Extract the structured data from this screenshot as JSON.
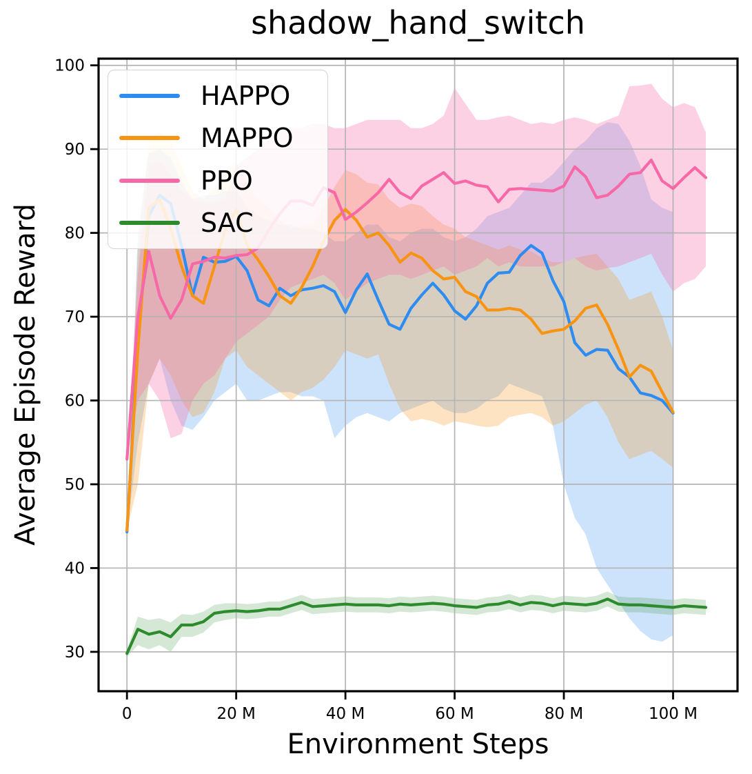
{
  "chart_data": {
    "type": "line",
    "title": "shadow_hand_switch",
    "xlabel": "Environment Steps",
    "ylabel": "Average Episode Reward",
    "xlim": [
      -5.2,
      111.8
    ],
    "ylim": [
      25.3,
      100.8
    ],
    "grid": true,
    "grid_color": "#b3b3b3",
    "legend_position": "upper left",
    "xticks": [
      0,
      20,
      40,
      60,
      80,
      100
    ],
    "xtick_labels": [
      "0",
      "20 M",
      "40 M",
      "60 M",
      "80 M",
      "100 M"
    ],
    "yticks": [
      30,
      40,
      50,
      60,
      70,
      80,
      90,
      100
    ],
    "ytick_labels": [
      "30",
      "40",
      "50",
      "60",
      "70",
      "80",
      "90",
      "100"
    ],
    "x_unit": "millions of environment steps",
    "series": [
      {
        "name": "HAPPO",
        "color": "#2e8cf0",
        "band_opacity": 0.24,
        "x": [
          0,
          2,
          4,
          6,
          8,
          10,
          12,
          14,
          16,
          18,
          20,
          22,
          24,
          26,
          28,
          30,
          32,
          34,
          36,
          38,
          40,
          42,
          44,
          46,
          48,
          50,
          52,
          54,
          56,
          58,
          60,
          62,
          64,
          66,
          68,
          70,
          72,
          74,
          76,
          78,
          80,
          82,
          84,
          86,
          88,
          90,
          92,
          94,
          96,
          98,
          100
        ],
        "y": [
          44.3,
          67,
          82,
          84.5,
          83.5,
          78.5,
          72.5,
          77.1,
          76.5,
          76.6,
          77.2,
          75.5,
          72,
          71.3,
          73.4,
          72.5,
          73.2,
          73.4,
          73.7,
          73,
          70.5,
          73.2,
          75.1,
          72,
          69.1,
          68.5,
          71,
          72.6,
          74,
          72.6,
          70.7,
          69.7,
          71.3,
          74,
          75.2,
          75.3,
          77.3,
          78.5,
          77.6,
          74.3,
          71.8,
          66.9,
          65.4,
          66.1,
          66,
          63.8,
          62.8,
          60.9,
          60.6,
          60,
          58.5
        ],
        "band_lo": [
          44.3,
          55,
          62,
          65,
          60,
          57,
          56.5,
          58,
          60,
          61,
          62,
          60,
          60,
          60.5,
          61,
          61,
          60.5,
          60.5,
          60,
          55.5,
          57,
          58,
          58.5,
          58,
          57.5,
          58.5,
          59,
          59.5,
          60,
          59,
          58.5,
          58.5,
          59,
          60,
          60.5,
          62,
          61.5,
          61,
          60.5,
          57,
          50,
          46,
          44,
          40,
          38,
          36,
          34,
          32.5,
          31.5,
          31.2,
          32
        ],
        "band_hi": [
          44.3,
          80,
          89.5,
          90,
          89,
          86,
          84,
          84.5,
          84.5,
          85,
          85,
          83,
          82,
          81.5,
          81,
          81,
          80.5,
          80.5,
          80,
          79,
          79,
          80,
          81,
          81,
          79.5,
          79,
          80,
          80.5,
          80.5,
          79.5,
          79,
          79.5,
          80.5,
          82,
          82.5,
          83,
          84.5,
          86,
          86,
          87,
          88.5,
          90,
          91,
          92.5,
          93.2,
          93,
          91,
          88,
          84,
          83,
          82.5
        ]
      },
      {
        "name": "MAPPO",
        "color": "#f89413",
        "band_opacity": 0.26,
        "x": [
          0,
          2,
          4,
          6,
          8,
          10,
          12,
          14,
          16,
          18,
          20,
          22,
          24,
          26,
          28,
          30,
          32,
          34,
          36,
          38,
          40,
          42,
          44,
          46,
          48,
          50,
          52,
          54,
          56,
          58,
          60,
          62,
          64,
          66,
          68,
          70,
          72,
          74,
          76,
          78,
          80,
          82,
          84,
          86,
          88,
          90,
          92,
          94,
          96,
          98,
          100
        ],
        "y": [
          44.5,
          66,
          83,
          84,
          80.5,
          76,
          72.5,
          71.6,
          76,
          80.4,
          82.8,
          78.5,
          76.8,
          74.8,
          72.5,
          71.6,
          73.5,
          76,
          79,
          81.5,
          82.8,
          81.5,
          79.5,
          80,
          78.5,
          76.5,
          77.6,
          77,
          75.5,
          74.5,
          74.7,
          73,
          72.4,
          70.8,
          70.8,
          71,
          70.8,
          69.7,
          68,
          68.3,
          68.5,
          69.5,
          71,
          71.4,
          69.1,
          66.1,
          62.8,
          64.2,
          63.5,
          61,
          58.6
        ],
        "band_lo": [
          44.5,
          50,
          62,
          65,
          63,
          60,
          58,
          58.5,
          61,
          65,
          66,
          64,
          63,
          62,
          61,
          60,
          61,
          61.5,
          62.5,
          64,
          66,
          65.5,
          65,
          65.5,
          62,
          59,
          57.5,
          57.8,
          57.5,
          57,
          57.5,
          57.3,
          57,
          56.8,
          57,
          58,
          58.3,
          58.5,
          58,
          57,
          57.5,
          58.5,
          59.5,
          60,
          58,
          55,
          53,
          53.5,
          54,
          53,
          52
        ],
        "band_hi": [
          44.5,
          78,
          91,
          92,
          91,
          88,
          85,
          84,
          85.5,
          87,
          88.5,
          86,
          84,
          83,
          81.5,
          80.5,
          80.8,
          81,
          83,
          85.5,
          87.5,
          87,
          86,
          85.8,
          84,
          83,
          83.5,
          83.2,
          82,
          81,
          80.5,
          79.5,
          79,
          78.5,
          78,
          78.5,
          78,
          77.8,
          77,
          76.5,
          76.5,
          77,
          77.3,
          77.5,
          76,
          74.5,
          72,
          72.5,
          73,
          70,
          66
        ]
      },
      {
        "name": "PPO",
        "color": "#f768a7",
        "band_opacity": 0.3,
        "x": [
          0,
          2,
          4,
          6,
          8,
          10,
          12,
          14,
          16,
          18,
          20,
          22,
          24,
          26,
          28,
          30,
          32,
          34,
          36,
          38,
          40,
          42,
          44,
          46,
          48,
          50,
          52,
          54,
          56,
          58,
          60,
          62,
          64,
          66,
          68,
          70,
          72,
          74,
          76,
          78,
          80,
          82,
          84,
          86,
          88,
          90,
          92,
          94,
          96,
          98,
          100,
          102,
          104,
          106
        ],
        "y": [
          53,
          70,
          77.8,
          72.5,
          69.8,
          72,
          76.3,
          76.6,
          77.1,
          77,
          77.3,
          77.4,
          78.2,
          80.4,
          82.3,
          83.8,
          83.8,
          83.3,
          85.4,
          84.8,
          81.6,
          82.5,
          83.6,
          84.8,
          86.4,
          84.8,
          84.1,
          85.6,
          86.4,
          87.2,
          85.9,
          86.2,
          85.7,
          85.5,
          83.7,
          85.2,
          85.3,
          85.2,
          85.1,
          85,
          85.6,
          87.9,
          86.7,
          84.2,
          84.5,
          85.6,
          87,
          87.2,
          88.7,
          86.2,
          85.3,
          86.6,
          87.8,
          86.6
        ],
        "band_lo": [
          53,
          60,
          62,
          60,
          55.5,
          56,
          60,
          62,
          63,
          65,
          67,
          68,
          69,
          70,
          72,
          73.5,
          74,
          74.5,
          75,
          74,
          72,
          73,
          74,
          74.5,
          75,
          75,
          74.5,
          75,
          75.5,
          76,
          75,
          75.5,
          76,
          77,
          76,
          76.5,
          76,
          76,
          76,
          76,
          76.5,
          77,
          76,
          75.5,
          75.8,
          76,
          76.5,
          77,
          77.5,
          75,
          73,
          74,
          74.5,
          76
        ],
        "band_hi": [
          53,
          75,
          88,
          88.5,
          87,
          85,
          84,
          83.5,
          83.5,
          84,
          88,
          89,
          90,
          91,
          92,
          92.5,
          92.5,
          93,
          93,
          92.5,
          92.5,
          93,
          93.5,
          93.5,
          93.5,
          93.5,
          92.5,
          92.5,
          93,
          94,
          97.3,
          95.4,
          93.5,
          93.5,
          93.8,
          94,
          93.5,
          93,
          93.2,
          93,
          93.5,
          93.8,
          93.5,
          93,
          93.5,
          94,
          97.5,
          97.6,
          97.8,
          96,
          95,
          95.5,
          95,
          92
        ]
      },
      {
        "name": "SAC",
        "color": "#2d8a2d",
        "band_opacity": 0.2,
        "x": [
          0,
          2,
          4,
          6,
          8,
          10,
          12,
          14,
          16,
          18,
          20,
          22,
          24,
          26,
          28,
          30,
          32,
          34,
          36,
          38,
          40,
          42,
          44,
          46,
          48,
          50,
          52,
          54,
          56,
          58,
          60,
          62,
          64,
          66,
          68,
          70,
          72,
          74,
          76,
          78,
          80,
          82,
          84,
          86,
          88,
          90,
          92,
          94,
          96,
          98,
          100,
          102,
          104,
          106
        ],
        "y": [
          29.8,
          32.7,
          32.1,
          32.4,
          31.8,
          33.2,
          33.2,
          33.6,
          34.6,
          34.8,
          34.9,
          34.8,
          34.9,
          35.1,
          35.1,
          35.5,
          35.9,
          35.4,
          35.5,
          35.6,
          35.7,
          35.6,
          35.6,
          35.6,
          35.5,
          35.7,
          35.6,
          35.7,
          35.8,
          35.7,
          35.5,
          35.4,
          35.3,
          35.6,
          35.7,
          36,
          35.6,
          35.9,
          35.8,
          35.5,
          35.8,
          35.7,
          35.6,
          35.8,
          36.3,
          35.7,
          35.6,
          35.6,
          35.5,
          35.4,
          35.3,
          35.5,
          35.4,
          35.3
        ],
        "band_lo": [
          29.4,
          30.8,
          30.3,
          30.8,
          30,
          31.8,
          31.8,
          32.3,
          33.5,
          33.8,
          34,
          33.9,
          34,
          34.2,
          34.2,
          34.6,
          35,
          34.5,
          34.6,
          34.7,
          34.8,
          34.7,
          34.7,
          34.7,
          34.6,
          34.8,
          34.7,
          34.8,
          34.9,
          34.8,
          34.6,
          34.5,
          34.4,
          34.7,
          34.8,
          35.1,
          34.7,
          35,
          34.9,
          34.6,
          34.9,
          34.8,
          34.7,
          34.9,
          35.4,
          34.8,
          34.7,
          34.7,
          34.6,
          34.5,
          34.4,
          34.6,
          34.5,
          34.4
        ],
        "band_hi": [
          30.2,
          34.2,
          33.8,
          34,
          33.5,
          34.5,
          34.4,
          34.8,
          35.6,
          35.8,
          35.8,
          35.7,
          35.8,
          36,
          36,
          36.4,
          36.8,
          36.3,
          36.4,
          36.5,
          36.6,
          36.5,
          36.5,
          36.5,
          36.4,
          36.6,
          36.5,
          36.6,
          36.7,
          36.6,
          36.4,
          36.3,
          36.2,
          36.5,
          36.6,
          36.9,
          36.5,
          36.8,
          36.7,
          36.4,
          36.7,
          36.6,
          36.5,
          36.7,
          37.2,
          36.6,
          36.5,
          36.5,
          36.4,
          36.3,
          36.2,
          36.4,
          36.3,
          36.2
        ]
      }
    ]
  }
}
